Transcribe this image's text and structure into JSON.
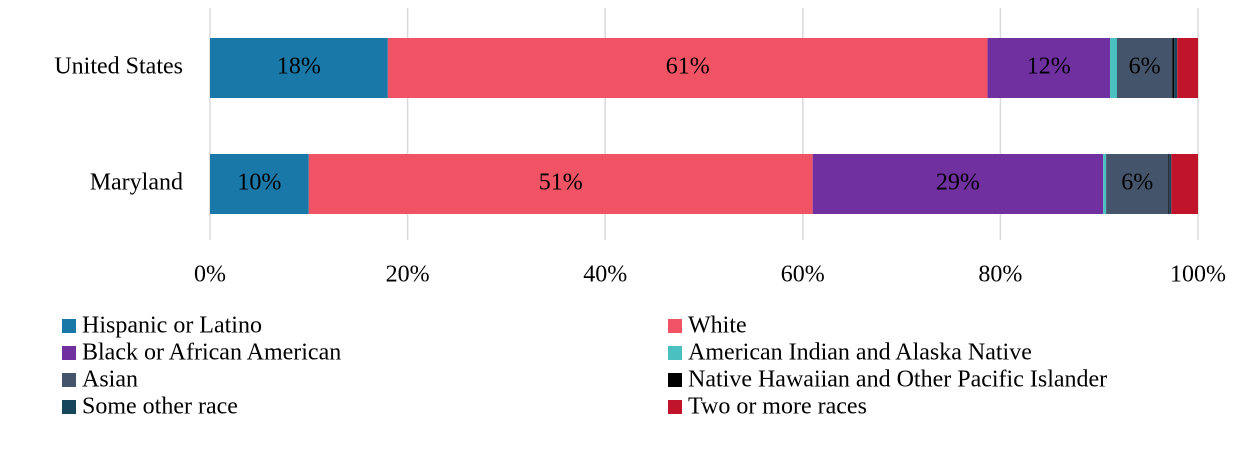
{
  "chart_data": {
    "type": "stacked_bar_horizontal",
    "categories": [
      "United States",
      "Maryland"
    ],
    "series": [
      {
        "name": "Hispanic or Latino",
        "color": "#1a78a8",
        "values": [
          18,
          10
        ],
        "value_labels": [
          "18%",
          "10%"
        ]
      },
      {
        "name": "White",
        "color": "#f05464",
        "values": [
          60.7,
          51
        ],
        "value_labels": [
          "61%",
          "51%"
        ]
      },
      {
        "name": "Black or African American",
        "color": "#7030a0",
        "values": [
          12.4,
          29.4
        ],
        "value_labels": [
          "12%",
          "29%"
        ]
      },
      {
        "name": "American Indian and Alaska Native",
        "color": "#4bc0c0",
        "values": [
          0.7,
          0.3
        ],
        "value_labels": [
          null,
          null
        ]
      },
      {
        "name": "Asian",
        "color": "#44546a",
        "values": [
          5.6,
          6.3
        ],
        "value_labels": [
          "6%",
          "6%"
        ]
      },
      {
        "name": "Native Hawaiian and Other Pacific Islander",
        "color": "#000000",
        "values": [
          0.2,
          0.1
        ],
        "value_labels": [
          null,
          null
        ]
      },
      {
        "name": "Some other race",
        "color": "#17455c",
        "values": [
          0.3,
          0.2
        ],
        "value_labels": [
          null,
          null
        ]
      },
      {
        "name": "Two or more races",
        "color": "#c0142a",
        "values": [
          2.1,
          2.7
        ],
        "value_labels": [
          null,
          null
        ]
      }
    ],
    "xlim": [
      0,
      100
    ],
    "xticks": [
      {
        "value": 0,
        "label": "0%"
      },
      {
        "value": 20,
        "label": "20%"
      },
      {
        "value": 40,
        "label": "40%"
      },
      {
        "value": 60,
        "label": "60%"
      },
      {
        "value": 80,
        "label": "80%"
      },
      {
        "value": 100,
        "label": "100%"
      }
    ],
    "grid": true,
    "legend": "bottom"
  }
}
